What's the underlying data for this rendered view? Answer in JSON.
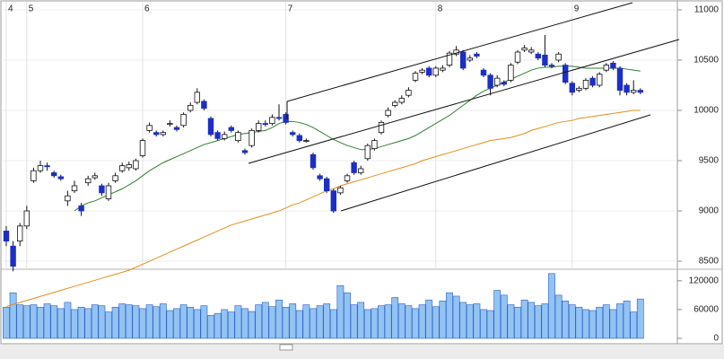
{
  "chart_data": {
    "type": "candlestick",
    "categories": [
      "4",
      null,
      null,
      "5",
      null,
      null,
      null,
      null,
      null,
      null,
      null,
      null,
      null,
      null,
      null,
      null,
      null,
      null,
      null,
      null,
      "6",
      null,
      null,
      null,
      null,
      null,
      null,
      null,
      null,
      null,
      null,
      null,
      null,
      null,
      null,
      null,
      null,
      null,
      null,
      null,
      null,
      "7",
      null,
      null,
      null,
      null,
      null,
      null,
      null,
      null,
      null,
      null,
      null,
      null,
      null,
      null,
      null,
      null,
      null,
      null,
      null,
      null,
      null,
      "8",
      null,
      null,
      null,
      null,
      null,
      null,
      null,
      null,
      null,
      null,
      null,
      null,
      null,
      null,
      null,
      null,
      null,
      null,
      null,
      "9",
      null,
      null,
      null,
      null,
      null,
      null,
      null,
      null,
      null,
      null
    ],
    "open": [
      8800,
      8650,
      8700,
      8850,
      9300,
      9400,
      9450,
      9380,
      9340,
      9100,
      9200,
      9050,
      9280,
      9330,
      9250,
      9120,
      9300,
      9400,
      9430,
      9420,
      9550,
      9800,
      9780,
      9760,
      9860,
      9830,
      9850,
      10000,
      10080,
      10090,
      9920,
      9780,
      9720,
      9830,
      9700,
      9600,
      9650,
      9800,
      9870,
      9870,
      9930,
      9960,
      9780,
      9750,
      9700,
      9560,
      9350,
      9320,
      9200,
      9180,
      9300,
      9480,
      9380,
      9520,
      9620,
      9780,
      9950,
      10050,
      10080,
      10150,
      10300,
      10380,
      10420,
      10350,
      10400,
      10450,
      10560,
      10580,
      10500,
      10560,
      10400,
      10350,
      10250,
      10280,
      10300,
      10480,
      10600,
      10580,
      10560,
      10550,
      10450,
      10500,
      10450,
      10270,
      10200,
      10220,
      10320,
      10250,
      10400,
      10470,
      10420,
      10250,
      10180,
      10200
    ],
    "high": [
      8850,
      8700,
      8880,
      9050,
      9430,
      9500,
      9480,
      9400,
      9360,
      9200,
      9300,
      9080,
      9350,
      9380,
      9270,
      9280,
      9380,
      9480,
      9490,
      9520,
      9720,
      9880,
      9800,
      9800,
      9900,
      9850,
      9980,
      10080,
      10220,
      10110,
      9940,
      9800,
      9790,
      9850,
      9800,
      9620,
      9820,
      9900,
      9900,
      9960,
      10060,
      9980,
      9800,
      9770,
      9720,
      9580,
      9370,
      9340,
      9220,
      9250,
      9370,
      9500,
      9450,
      9670,
      9720,
      9900,
      10030,
      10100,
      10150,
      10230,
      10390,
      10420,
      10440,
      10440,
      10450,
      10590,
      10640,
      10600,
      10550,
      10580,
      10420,
      10370,
      10350,
      10300,
      10470,
      10600,
      10650,
      10630,
      10580,
      10750,
      10470,
      10580,
      10470,
      10290,
      10240,
      10320,
      10340,
      10380,
      10470,
      10490,
      10440,
      10270,
      10300,
      10220
    ],
    "low": [
      8650,
      8400,
      8650,
      8820,
      9280,
      9380,
      9400,
      9330,
      9300,
      9050,
      9180,
      8950,
      9250,
      9310,
      9150,
      9100,
      9280,
      9380,
      9400,
      9400,
      9530,
      9780,
      9740,
      9740,
      9840,
      9790,
      9830,
      9980,
      10060,
      10000,
      9740,
      9700,
      9700,
      9780,
      9680,
      9560,
      9630,
      9780,
      9840,
      9850,
      9900,
      9860,
      9740,
      9680,
      9680,
      9410,
      9300,
      9180,
      8980,
      9160,
      9280,
      9360,
      9360,
      9500,
      9600,
      9760,
      9930,
      10030,
      10060,
      10130,
      10280,
      10360,
      10330,
      10330,
      10380,
      10430,
      10540,
      10400,
      10480,
      10520,
      10330,
      10150,
      10230,
      10240,
      10280,
      10460,
      10580,
      10560,
      10500,
      10430,
      10420,
      10480,
      10260,
      10150,
      10180,
      10200,
      10230,
      10230,
      10380,
      10400,
      10150,
      10150,
      10160,
      10160
    ],
    "close": [
      8700,
      8450,
      8850,
      9000,
      9400,
      9450,
      9440,
      9350,
      9320,
      9150,
      9250,
      9000,
      9320,
      9350,
      9180,
      9250,
      9350,
      9450,
      9460,
      9500,
      9700,
      9850,
      9760,
      9780,
      9870,
      9810,
      9960,
      10050,
      10180,
      10020,
      9760,
      9720,
      9760,
      9800,
      9780,
      9580,
      9800,
      9870,
      9860,
      9930,
      9920,
      9880,
      9760,
      9700,
      9700,
      9430,
      9320,
      9200,
      9000,
      9230,
      9350,
      9380,
      9420,
      9650,
      9700,
      9880,
      10000,
      10080,
      10120,
      10200,
      10370,
      10400,
      10350,
      10420,
      10420,
      10570,
      10600,
      10420,
      10520,
      10540,
      10350,
      10220,
      10320,
      10260,
      10450,
      10580,
      10620,
      10600,
      10520,
      10450,
      10440,
      10560,
      10280,
      10180,
      10220,
      10300,
      10250,
      10360,
      10450,
      10420,
      10200,
      10180,
      10200,
      10180
    ],
    "up_color": "#ffffff",
    "down_color": "#1c2fc4",
    "moving_averages": [
      {
        "color": "#2e7d32",
        "values": [
          null,
          null,
          null,
          null,
          null,
          null,
          null,
          null,
          null,
          null,
          9000,
          9050,
          9080,
          9100,
          9130,
          9160,
          9190,
          9220,
          9260,
          9300,
          9350,
          9400,
          9440,
          9480,
          9510,
          9540,
          9570,
          9600,
          9630,
          9660,
          9680,
          9700,
          9720,
          9740,
          9760,
          9770,
          9780,
          9790,
          9800,
          9830,
          9870,
          9890,
          9890,
          9880,
          9860,
          9830,
          9790,
          9750,
          9710,
          9680,
          9650,
          9630,
          9610,
          9610,
          9620,
          9640,
          9660,
          9680,
          9700,
          9720,
          9750,
          9790,
          9830,
          9870,
          9910,
          9950,
          10000,
          10050,
          10100,
          10150,
          10190,
          10220,
          10250,
          10280,
          10310,
          10340,
          10370,
          10400,
          10420,
          10430,
          10430,
          10440,
          10440,
          10440,
          10430,
          10420,
          10420,
          10420,
          10420,
          10420,
          10420,
          10410,
          10400,
          10390
        ]
      },
      {
        "color": "#e0901c",
        "values": [
          8050,
          8070,
          8090,
          8110,
          8130,
          8150,
          8170,
          8190,
          8210,
          8230,
          8250,
          8270,
          8290,
          8310,
          8330,
          8350,
          8370,
          8390,
          8410,
          8440,
          8470,
          8500,
          8530,
          8560,
          8590,
          8620,
          8650,
          8680,
          8710,
          8740,
          8770,
          8800,
          8830,
          8860,
          8880,
          8900,
          8920,
          8940,
          8960,
          8980,
          9000,
          9030,
          9060,
          9080,
          9110,
          9140,
          9170,
          9200,
          9220,
          9250,
          9270,
          9290,
          9310,
          9330,
          9350,
          9370,
          9390,
          9410,
          9430,
          9450,
          9470,
          9500,
          9520,
          9540,
          9560,
          9580,
          9600,
          9620,
          9640,
          9660,
          9680,
          9700,
          9710,
          9720,
          9730,
          9750,
          9770,
          9800,
          9820,
          9840,
          9860,
          9880,
          9890,
          9900,
          9920,
          9930,
          9940,
          9950,
          9960,
          9970,
          9980,
          9990,
          10000,
          10000
        ]
      }
    ],
    "ylim": [
      8420,
      11080
    ],
    "yticks": [
      8500,
      9000,
      9500,
      10000,
      10500,
      11000
    ],
    "volume": {
      "color": "#92c3f2",
      "values": [
        65000,
        95000,
        70000,
        68000,
        70000,
        65000,
        72000,
        68000,
        62000,
        75000,
        60000,
        65000,
        62000,
        70000,
        68000,
        55000,
        65000,
        72000,
        70000,
        68000,
        62000,
        70000,
        66000,
        72000,
        58000,
        62000,
        70000,
        65000,
        60000,
        68000,
        48000,
        52000,
        60000,
        55000,
        68000,
        62000,
        56000,
        70000,
        75000,
        66000,
        80000,
        65000,
        72000,
        58000,
        70000,
        62000,
        68000,
        72000,
        60000,
        110000,
        95000,
        70000,
        75000,
        60000,
        62000,
        68000,
        70000,
        85000,
        72000,
        68000,
        62000,
        70000,
        80000,
        66000,
        78000,
        95000,
        88000,
        75000,
        70000,
        72000,
        60000,
        58000,
        100000,
        90000,
        70000,
        65000,
        80000,
        75000,
        68000,
        72000,
        135000,
        90000,
        78000,
        70000,
        65000,
        60000,
        58000,
        65000,
        70000,
        60000,
        72000,
        78000,
        55000,
        82000
      ],
      "ylim": [
        0,
        144000
      ],
      "yticks": [
        0,
        60000,
        120000
      ]
    }
  }
}
